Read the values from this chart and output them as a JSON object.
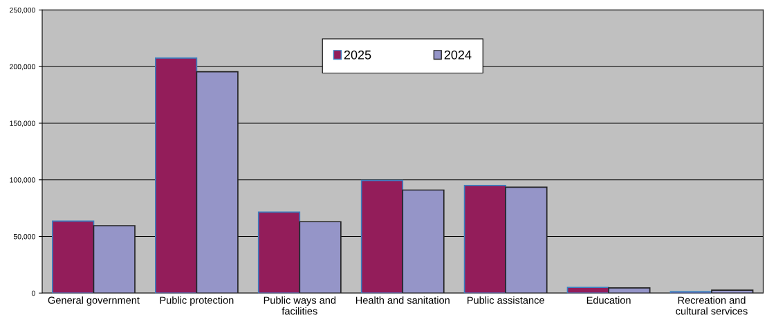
{
  "chart_data": {
    "type": "bar",
    "categories": [
      "General government",
      "Public protection",
      "Public ways and\nfacilities",
      "Health and sanitation",
      "Public assistance",
      "Education",
      "Recreation and\ncultural services"
    ],
    "series": [
      {
        "name": "2025",
        "color": "#931d5a",
        "values": [
          63500,
          207500,
          71500,
          99500,
          95000,
          5000,
          1200
        ]
      },
      {
        "name": "2024",
        "color": "#9595c8",
        "values": [
          59500,
          195500,
          63000,
          91000,
          93500,
          4500,
          2500
        ]
      }
    ],
    "ylim": [
      0,
      250000
    ],
    "yticks": [
      {
        "value": 0,
        "label": "0"
      },
      {
        "value": 50000,
        "label": "50,000"
      },
      {
        "value": 100000,
        "label": "100,000"
      },
      {
        "value": 150000,
        "label": "150,000"
      },
      {
        "value": 200000,
        "label": "200,000"
      },
      {
        "value": 250000,
        "label": "250,000"
      }
    ],
    "grid": "y",
    "legend": "top"
  }
}
